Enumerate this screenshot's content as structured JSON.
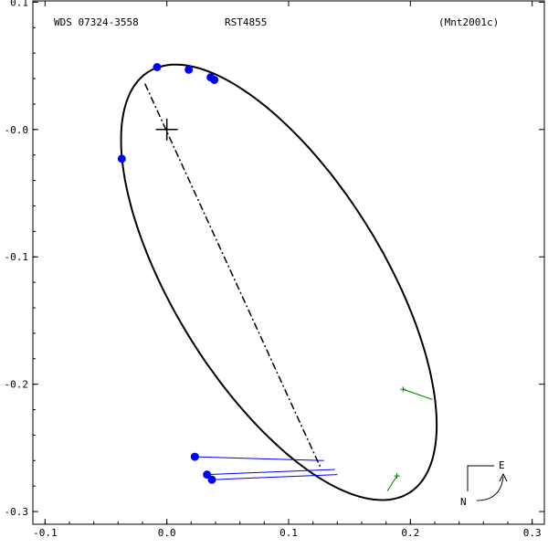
{
  "chart_data": {
    "type": "scatter",
    "header": {
      "left": "WDS 07324-3558",
      "center": "RST4855",
      "right": "(Mnt2001c)"
    },
    "xlim": [
      -0.11,
      0.31
    ],
    "ylim": [
      -0.31,
      0.101
    ],
    "x_ticks": [
      {
        "value": -0.1,
        "label": "-0.1"
      },
      {
        "value": 0.0,
        "label": "0.0"
      },
      {
        "value": 0.1,
        "label": "0.1"
      },
      {
        "value": 0.2,
        "label": "0.2"
      },
      {
        "value": 0.3,
        "label": "0.3"
      }
    ],
    "y_ticks": [
      {
        "value": 0.1,
        "label": "0.1"
      },
      {
        "value": 0.0,
        "label": "-0.0"
      },
      {
        "value": -0.1,
        "label": "-0.1"
      },
      {
        "value": -0.2,
        "label": "-0.2"
      },
      {
        "value": -0.3,
        "label": "-0.3"
      }
    ],
    "primary_star": {
      "x": 0.0,
      "y": 0.0
    },
    "orbit": {
      "center": {
        "x": 0.092,
        "y": -0.12
      },
      "semi_major": 0.197,
      "semi_minor": 0.085,
      "angle_deg": -56.6
    },
    "line_of_nodes": {
      "from": {
        "x": -0.018,
        "y": 0.036
      },
      "to": {
        "x": 0.126,
        "y": -0.265
      }
    },
    "observations": [
      {
        "x": -0.008,
        "y": 0.049,
        "residual": null
      },
      {
        "x": 0.018,
        "y": 0.047,
        "residual": null
      },
      {
        "x": 0.036,
        "y": 0.041,
        "residual": null
      },
      {
        "x": 0.039,
        "y": 0.039,
        "residual": null
      },
      {
        "x": -0.037,
        "y": -0.023,
        "residual": null
      },
      {
        "x": 0.023,
        "y": -0.257,
        "residual": {
          "x": 0.129,
          "y": -0.26
        }
      },
      {
        "x": 0.033,
        "y": -0.271,
        "residual": {
          "x": 0.138,
          "y": -0.267
        }
      },
      {
        "x": 0.037,
        "y": -0.275,
        "residual": {
          "x": 0.14,
          "y": -0.271
        }
      }
    ],
    "predicted": [
      {
        "x": 0.194,
        "y": -0.204,
        "orbit_point": {
          "x": 0.218,
          "y": -0.212
        }
      },
      {
        "x": 0.189,
        "y": -0.272,
        "orbit_point": {
          "x": 0.181,
          "y": -0.284
        }
      }
    ],
    "compass": {
      "east": "E",
      "north": "N"
    },
    "colors": {
      "observation": "#0000ff",
      "residual": "#0000ff",
      "predicted": "#008000",
      "orbit": "#000000"
    }
  }
}
